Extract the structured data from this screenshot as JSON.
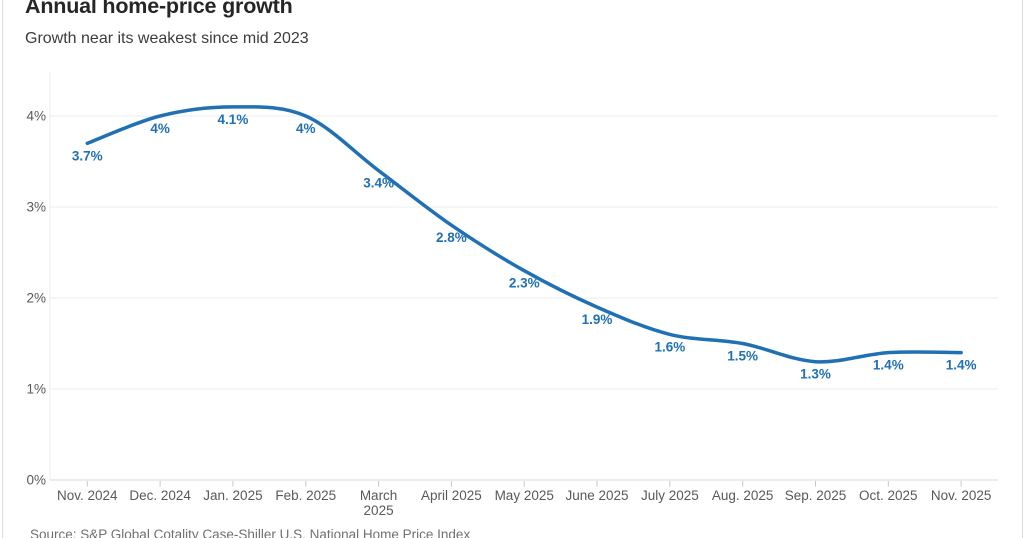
{
  "header": {
    "title": "Annual home-price growth",
    "subtitle": "Growth near its weakest since mid 2023"
  },
  "footer": {
    "source": "Source: S&P Global Cotality Case-Shiller U.S. National Home Price Index"
  },
  "chart_data": {
    "type": "line",
    "title": "Annual home-price growth",
    "subtitle": "Growth near its weakest since mid 2023",
    "categories": [
      "Nov. 2024",
      "Dec. 2024",
      "Jan. 2025",
      "Feb. 2025",
      "March\n2025",
      "April 2025",
      "May 2025",
      "June 2025",
      "July 2025",
      "Aug. 2025",
      "Sep. 2025",
      "Oct. 2025",
      "Nov. 2025"
    ],
    "values": [
      3.7,
      4.0,
      4.1,
      4.0,
      3.4,
      2.8,
      2.3,
      1.9,
      1.6,
      1.5,
      1.3,
      1.4,
      1.4
    ],
    "point_labels": [
      "3.7%",
      "4%",
      "4.1%",
      "4%",
      "3.4%",
      "2.8%",
      "2.3%",
      "1.9%",
      "1.6%",
      "1.5%",
      "1.3%",
      "1.4%",
      "1.4%"
    ],
    "yticks": {
      "values": [
        0,
        1,
        2,
        3,
        4
      ],
      "labels": [
        "0%",
        "1%",
        "2%",
        "3%",
        "4%"
      ]
    },
    "ylim": [
      0,
      4.48
    ],
    "xlabel": "",
    "ylabel": "",
    "grid": "horizontal",
    "legend": "none",
    "line_color": "#2070b4",
    "point_label_color": "#2070b4"
  }
}
